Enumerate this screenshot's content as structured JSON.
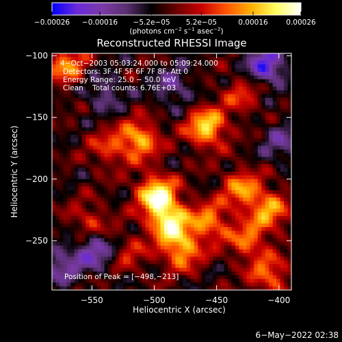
{
  "chart_data": {
    "type": "heatmap",
    "title": "Reconstructed RHESSI Image",
    "xlabel": "Heliocentric X (arcsec)",
    "ylabel": "Heliocentric Y (arcsec)",
    "xlim": [
      -582,
      -390
    ],
    "ylim": [
      -290,
      -98
    ],
    "xticks": [
      -550,
      -500,
      -450,
      -400
    ],
    "xtick_labels": [
      "−550",
      "−500",
      "−450",
      "−400"
    ],
    "yticks": [
      -100,
      -150,
      -200,
      -250
    ],
    "ytick_labels": [
      "−100",
      "−150",
      "−200",
      "−250"
    ],
    "colorbar": {
      "min": -0.00026,
      "max": 0.00026,
      "ticks": [
        -0.00026,
        -0.00016,
        -5.2e-05,
        5.2e-05,
        0.00016,
        0.00026
      ],
      "tick_labels": [
        "−0.00026",
        "−0.00016",
        "−5.2e−05",
        "5.2e−05",
        "0.00016",
        "0.00026"
      ],
      "units_base": "(photons cm",
      "units_exp1": "−2",
      "units_mid1": " s",
      "units_exp2": "−1",
      "units_mid2": " asec",
      "units_exp3": "−2",
      "units_end": ")",
      "colors": [
        "#0000ff",
        "#6a2ad8",
        "#7a3aa8",
        "#5a3070",
        "#000000",
        "#6a0000",
        "#c80000",
        "#ff5500",
        "#ffb000",
        "#ffff60",
        "#ffffff"
      ]
    },
    "annotations": [
      "4−Oct−2003 05:03:24.000 to 05:09:24.000",
      "Detectors: 3F 4F 5F 6F 7F 8F, Att 0",
      "Energy Range: 25.0 − 50.0 keV",
      "Clean    Total counts: 6.76E+03",
      "Position of Peak = [−498,−213]"
    ],
    "peak": [
      -498,
      -213
    ],
    "bright_sources": [
      {
        "x": -430,
        "y": -208,
        "v": 0.00016
      },
      {
        "x": -512,
        "y": -168,
        "v": 0.00019
      },
      {
        "x": -458,
        "y": -158,
        "v": 0.00022
      },
      {
        "x": -498,
        "y": -213,
        "v": 0.00026
      },
      {
        "x": -488,
        "y": -235,
        "v": 0.00024
      },
      {
        "x": -478,
        "y": -258,
        "v": 0.00018
      },
      {
        "x": -456,
        "y": -235,
        "v": 0.00016
      },
      {
        "x": -408,
        "y": -225,
        "v": 0.00017
      },
      {
        "x": -425,
        "y": -250,
        "v": 0.00014
      },
      {
        "x": -552,
        "y": -235,
        "v": 0.0001
      },
      {
        "x": -570,
        "y": -108,
        "v": 0.00016
      },
      {
        "x": -430,
        "y": -132,
        "v": 0.0001
      },
      {
        "x": -408,
        "y": -278,
        "v": 0.00014
      },
      {
        "x": -537,
        "y": -175,
        "v": 0.0001
      },
      {
        "x": -520,
        "y": -260,
        "v": 8e-05
      }
    ],
    "dark_regions": [
      {
        "x": -410,
        "y": -108,
        "v": -0.00018
      },
      {
        "x": -548,
        "y": -258,
        "v": -0.00014
      },
      {
        "x": -485,
        "y": -125,
        "v": -0.0001
      },
      {
        "x": -540,
        "y": -130,
        "v": -9e-05
      },
      {
        "x": -575,
        "y": -270,
        "v": -0.00011
      },
      {
        "x": -398,
        "y": -170,
        "v": -9e-05
      }
    ]
  },
  "footer": {
    "timestamp": "6−May−2022 02:38"
  }
}
